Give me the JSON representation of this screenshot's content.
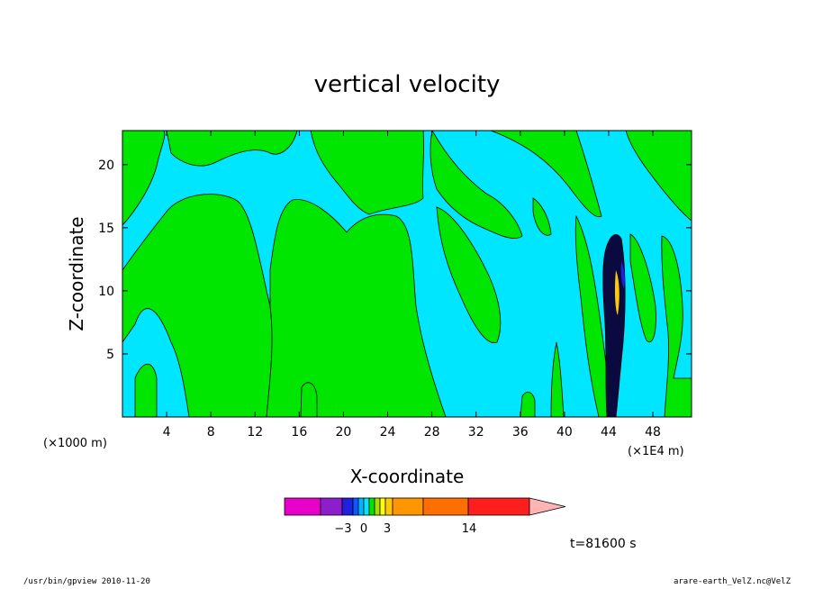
{
  "chart_data": {
    "type": "heatmap",
    "title": "vertical velocity",
    "xlabel": "X-coordinate",
    "ylabel": "Z-coordinate",
    "x_unit_left": "(×1000 m)",
    "x_unit_right": "(×1E4 m)",
    "x_ticks": [
      4,
      8,
      12,
      16,
      20,
      24,
      28,
      32,
      36,
      40,
      44,
      48
    ],
    "y_ticks": [
      5,
      10,
      15,
      20
    ],
    "xlim": [
      0,
      51.5
    ],
    "ylim": [
      0,
      22.7
    ],
    "field_colors": {
      "background": "#00e6ff",
      "updraft": "#00e600",
      "strong_core": "#0a0a40"
    },
    "colorbar": {
      "labels": [
        {
          "text": "−3",
          "value": -3
        },
        {
          "text": "0",
          "value": 0
        },
        {
          "text": "3",
          "value": 3
        },
        {
          "text": "14",
          "value": 14
        }
      ],
      "swatches": [
        "#e600c8",
        "#8c1ecc",
        "#2020dd",
        "#0a5aff",
        "#00b4ff",
        "#00e6ff",
        "#00e600",
        "#aadc00",
        "#ffff00",
        "#ffc800",
        "#ff9600",
        "#ff6e00",
        "#ff1e1e",
        "#ff8080",
        "#ffb4b4"
      ]
    },
    "time_label": "t=81600 s"
  },
  "footer": {
    "left": "/usr/bin/gpview  2010-11-20",
    "right": "arare-earth_VelZ.nc@VelZ"
  }
}
